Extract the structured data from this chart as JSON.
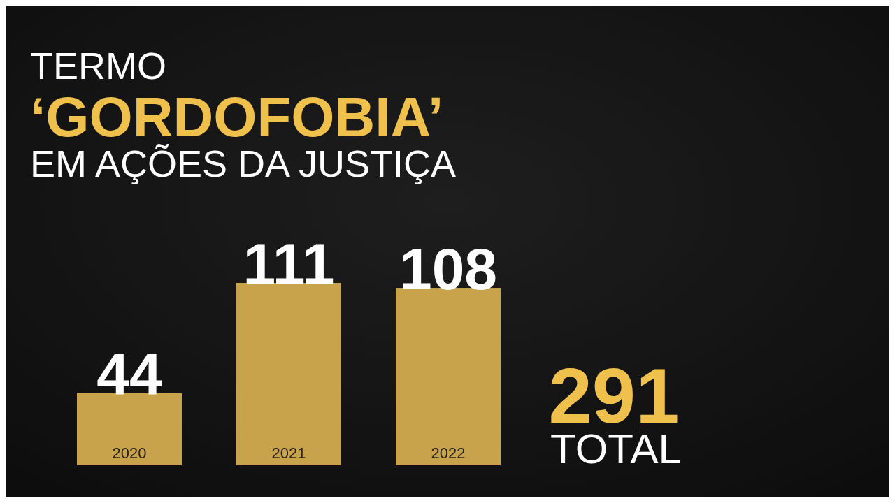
{
  "chart_data": {
    "type": "bar",
    "title": "TERMO ‘GORDOFOBIA’ EM AÇÕES DA JUSTIÇA",
    "categories": [
      "2020",
      "2021",
      "2022"
    ],
    "values": [
      44,
      111,
      108
    ],
    "color": "#c9a24c",
    "data_labels": true,
    "annotations": [
      "291",
      "TOTAL"
    ]
  }
}
